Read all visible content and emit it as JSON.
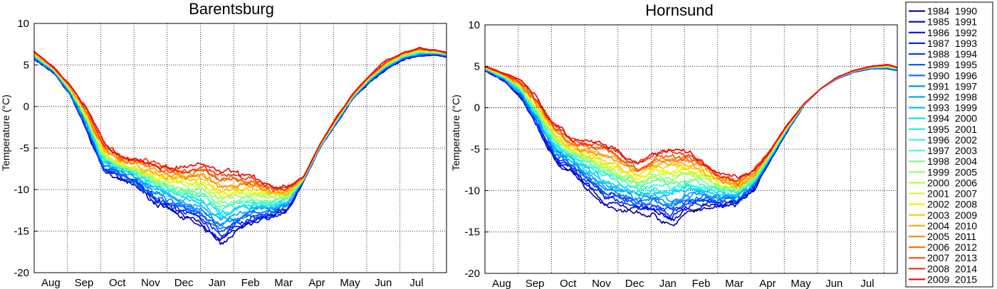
{
  "chart_data": [
    {
      "type": "line",
      "title": "Barentsburg",
      "xlabel": "",
      "ylabel": "Temperature (°C)",
      "ylim": [
        -20,
        10
      ],
      "yticks": [
        10,
        5,
        0,
        -5,
        -10,
        -15,
        -20
      ],
      "x_categories": [
        "Aug",
        "Sep",
        "Oct",
        "Nov",
        "Dec",
        "Jan",
        "Feb",
        "Mar",
        "Apr",
        "May",
        "Jun",
        "Jul"
      ],
      "x_range_months": [
        -0.1,
        12.3
      ],
      "grid": true,
      "zero_line": true,
      "envelope": {
        "months": [
          -0.1,
          0.5,
          1.0,
          1.5,
          2.0,
          2.5,
          3.0,
          3.5,
          4.0,
          4.5,
          5.0,
          5.5,
          6.0,
          6.5,
          7.0,
          7.5,
          8.0,
          8.5,
          9.0,
          9.5,
          10.0,
          10.5,
          11.0,
          11.5,
          12.0,
          12.3
        ],
        "coldest": [
          5.7,
          4.0,
          1.3,
          -3.0,
          -7.8,
          -8.7,
          -9.6,
          -11.5,
          -12.6,
          -13.5,
          -14.5,
          -16.5,
          -15.0,
          -14.0,
          -13.5,
          -12.5,
          -9.0,
          -5.0,
          -2.0,
          1.0,
          3.0,
          4.5,
          5.7,
          6.1,
          6.2,
          6.0
        ],
        "warmest": [
          6.6,
          4.7,
          2.4,
          -0.5,
          -4.5,
          -6.0,
          -6.4,
          -6.9,
          -7.3,
          -7.4,
          -7.0,
          -8.0,
          -8.2,
          -8.6,
          -9.4,
          -9.8,
          -8.5,
          -4.5,
          -1.2,
          1.6,
          3.8,
          5.5,
          6.5,
          7.0,
          6.8,
          6.5
        ]
      }
    },
    {
      "type": "line",
      "title": "Hornsund",
      "xlabel": "",
      "ylabel": "Temperature (°C)",
      "ylim": [
        -20,
        10
      ],
      "yticks": [
        10,
        5,
        0,
        -5,
        -10,
        -15,
        -20
      ],
      "x_categories": [
        "Aug",
        "Sep",
        "Oct",
        "Nov",
        "Dec",
        "Jan",
        "Feb",
        "Mar",
        "Apr",
        "May",
        "Jun",
        "Jul"
      ],
      "x_range_months": [
        -0.1,
        12.3
      ],
      "grid": true,
      "zero_line": true,
      "envelope": {
        "months": [
          -0.1,
          0.5,
          1.0,
          1.5,
          2.0,
          2.5,
          3.0,
          3.5,
          4.0,
          4.5,
          5.0,
          5.5,
          6.0,
          6.5,
          7.0,
          7.5,
          8.0,
          8.5,
          9.0,
          9.5,
          10.0,
          10.5,
          11.0,
          11.5,
          12.0,
          12.3
        ],
        "coldest": [
          4.5,
          3.2,
          1.2,
          -2.5,
          -6.5,
          -7.6,
          -9.6,
          -11.5,
          -12.0,
          -12.5,
          -13.0,
          -14.0,
          -12.5,
          -12.0,
          -12.0,
          -11.5,
          -9.8,
          -6.2,
          -2.8,
          0.3,
          2.3,
          3.5,
          4.3,
          4.7,
          4.7,
          4.5
        ],
        "warmest": [
          5.0,
          4.1,
          3.1,
          0.9,
          -2.0,
          -3.8,
          -4.2,
          -4.5,
          -5.5,
          -6.7,
          -5.5,
          -5.0,
          -5.5,
          -6.5,
          -8.0,
          -8.7,
          -7.5,
          -5.0,
          -2.0,
          0.5,
          2.3,
          3.7,
          4.5,
          5.0,
          5.2,
          4.9
        ]
      }
    }
  ],
  "legend": {
    "entries": [
      {
        "label": "1984 1990",
        "color": "#00008f"
      },
      {
        "label": "1985 1991",
        "color": "#0000c4"
      },
      {
        "label": "1986 1992",
        "color": "#0010ff"
      },
      {
        "label": "1987 1993",
        "color": "#0028ff"
      },
      {
        "label": "1988 1994",
        "color": "#0040ff"
      },
      {
        "label": "1989 1995",
        "color": "#0060ff"
      },
      {
        "label": "1990 1996",
        "color": "#0078ff"
      },
      {
        "label": "1991 1997",
        "color": "#0090ff"
      },
      {
        "label": "1992 1998",
        "color": "#00a8ff"
      },
      {
        "label": "1993 1999",
        "color": "#00c4ff"
      },
      {
        "label": "1994 2000",
        "color": "#00dcfc"
      },
      {
        "label": "1995 2001",
        "color": "#14f0e8"
      },
      {
        "label": "1996 2002",
        "color": "#30ffcc"
      },
      {
        "label": "1997 2003",
        "color": "#50ffac"
      },
      {
        "label": "1998 2004",
        "color": "#70ff8c"
      },
      {
        "label": "1999 2005",
        "color": "#90ff6c"
      },
      {
        "label": "2000 2006",
        "color": "#b0ff4c"
      },
      {
        "label": "2001 2007",
        "color": "#d4ff28"
      },
      {
        "label": "2002 2008",
        "color": "#f4f000"
      },
      {
        "label": "2003 2009",
        "color": "#ffd000"
      },
      {
        "label": "2004 2010",
        "color": "#ffb000"
      },
      {
        "label": "2005 2011",
        "color": "#ff9000"
      },
      {
        "label": "2006 2012",
        "color": "#ff7000"
      },
      {
        "label": "2007 2013",
        "color": "#ff5000"
      },
      {
        "label": "2008 2014",
        "color": "#ff2800"
      },
      {
        "label": "2009 2015",
        "color": "#f00000"
      }
    ]
  }
}
